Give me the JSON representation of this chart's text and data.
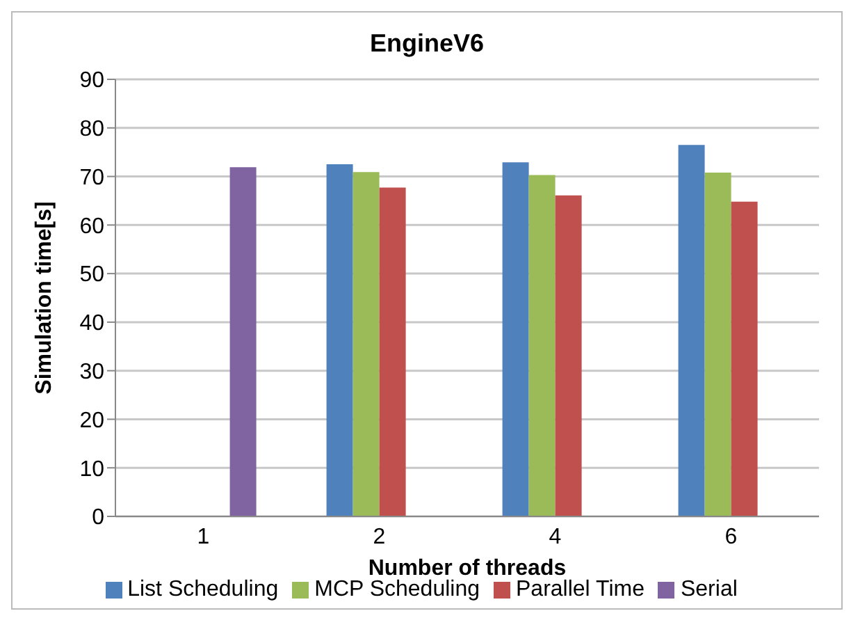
{
  "chart_data": {
    "type": "bar",
    "title": "EngineV6",
    "xlabel": "Number of threads",
    "ylabel": "Simulation time[s]",
    "categories": [
      "1",
      "2",
      "4",
      "6"
    ],
    "series": [
      {
        "name": "List Scheduling",
        "color": "#4f81bd",
        "values": [
          null,
          72.5,
          72.9,
          76.5
        ]
      },
      {
        "name": "MCP Scheduling",
        "color": "#9bbb59",
        "values": [
          null,
          70.9,
          70.3,
          70.8
        ]
      },
      {
        "name": "Parallel Time",
        "color": "#c0504d",
        "values": [
          null,
          67.7,
          66.1,
          64.8
        ]
      },
      {
        "name": "Serial",
        "color": "#8064a2",
        "values": [
          71.9,
          null,
          null,
          null
        ]
      }
    ],
    "ylim": [
      0,
      90
    ],
    "yticks": [
      0,
      10,
      20,
      30,
      40,
      50,
      60,
      70,
      80,
      90
    ],
    "grid": "y",
    "legend": "bottom"
  }
}
